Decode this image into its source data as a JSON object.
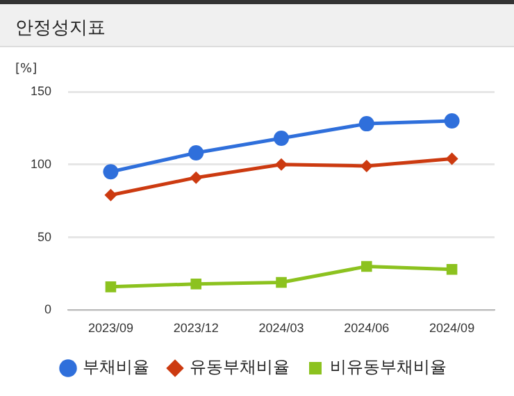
{
  "chart_data": {
    "type": "line",
    "title": "안정성지표",
    "ylabel": "[%]",
    "categories": [
      "2023/09",
      "2023/12",
      "2024/03",
      "2024/06",
      "2024/09"
    ],
    "series": [
      {
        "name": "부채비율",
        "color": "#2f6fdb",
        "marker": "circle",
        "values": [
          95,
          108,
          118,
          128,
          130
        ]
      },
      {
        "name": "유동부채비율",
        "color": "#cc3a10",
        "marker": "diamond",
        "values": [
          79,
          91,
          100,
          99,
          104
        ]
      },
      {
        "name": "비유동부채비율",
        "color": "#8cc21f",
        "marker": "square",
        "values": [
          16,
          18,
          19,
          30,
          28
        ]
      }
    ],
    "ylim": [
      0,
      150
    ],
    "yticks": [
      0,
      50,
      100,
      150
    ],
    "grid": "y",
    "legend": "bottom",
    "line_style": "solid"
  }
}
